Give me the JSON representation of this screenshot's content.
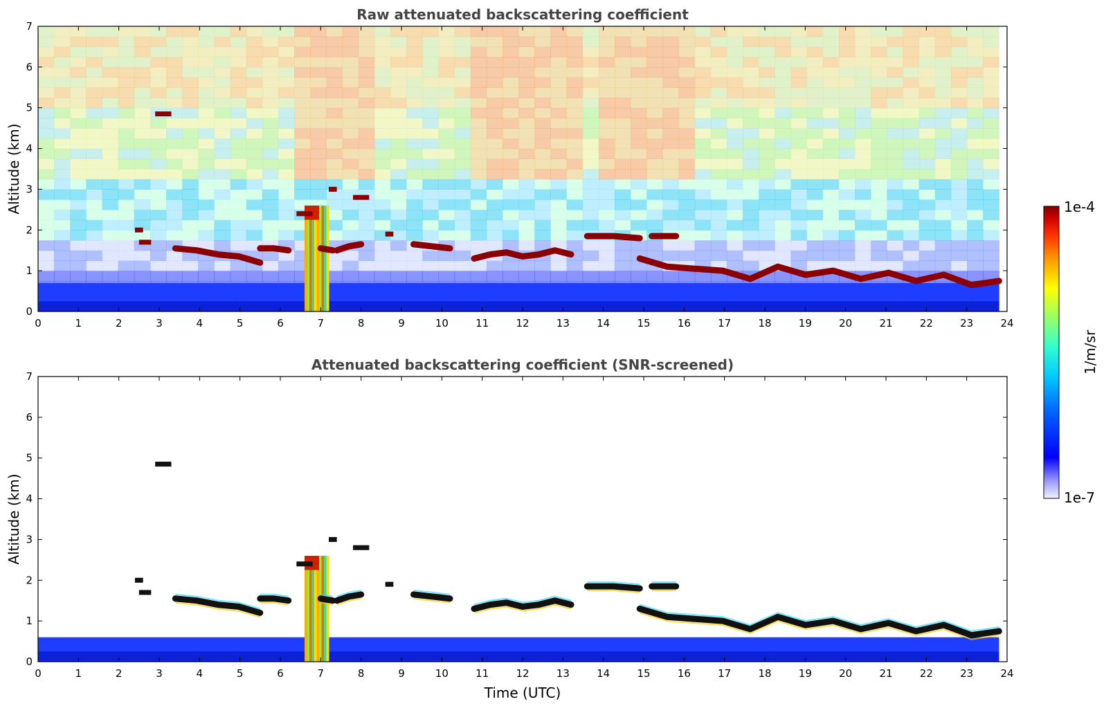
{
  "chart_data": [
    {
      "type": "heatmap",
      "title": "Raw attenuated backscattering coefficient",
      "xlabel": "",
      "ylabel": "Altitude (km)",
      "xlim": [
        0,
        24
      ],
      "ylim": [
        0,
        7
      ],
      "x_ticks": [
        "0",
        "1",
        "2",
        "3",
        "4",
        "5",
        "6",
        "7",
        "8",
        "9",
        "10",
        "11",
        "12",
        "13",
        "14",
        "15",
        "16",
        "17",
        "18",
        "19",
        "20",
        "21",
        "22",
        "23",
        "24"
      ],
      "y_ticks": [
        "0",
        "1",
        "2",
        "3",
        "4",
        "5",
        "6",
        "7"
      ],
      "data_end_time": 23.8,
      "noise": true,
      "boundary_layer_top_km": 0.7,
      "cloud_layers": [
        {
          "t": [
            3.4,
            5.5
          ],
          "alt": [
            1.55,
            1.5,
            1.4,
            1.35,
            1.2
          ]
        },
        {
          "t": [
            5.5,
            6.2
          ],
          "alt": [
            1.55,
            1.55,
            1.5
          ]
        },
        {
          "t": [
            7.0,
            7.3
          ],
          "alt": [
            1.55,
            1.5
          ]
        },
        {
          "t": [
            7.4,
            8.0
          ],
          "alt": [
            1.5,
            1.6,
            1.65
          ]
        },
        {
          "t": [
            9.3,
            10.2
          ],
          "alt": [
            1.65,
            1.6,
            1.55
          ]
        },
        {
          "t": [
            10.8,
            13.2
          ],
          "alt": [
            1.3,
            1.4,
            1.45,
            1.35,
            1.4,
            1.5,
            1.4
          ]
        },
        {
          "t": [
            13.6,
            14.9
          ],
          "alt": [
            1.85,
            1.85,
            1.8
          ]
        },
        {
          "t": [
            15.2,
            15.8
          ],
          "alt": [
            1.85,
            1.85
          ]
        },
        {
          "t": [
            14.9,
            23.8
          ],
          "alt": [
            1.3,
            1.1,
            1.05,
            1.0,
            0.8,
            1.1,
            0.9,
            1.0,
            0.8,
            0.95,
            0.75,
            0.9,
            0.65,
            0.75
          ]
        }
      ],
      "small_patches": [
        {
          "t": [
            2.9,
            3.3
          ],
          "alt": 4.85
        },
        {
          "t": [
            2.4,
            2.6
          ],
          "alt": 2.0
        },
        {
          "t": [
            2.5,
            2.8
          ],
          "alt": 1.7
        },
        {
          "t": [
            8.6,
            8.8
          ],
          "alt": 1.9
        },
        {
          "t": [
            7.8,
            8.2
          ],
          "alt": 2.8
        },
        {
          "t": [
            7.2,
            7.4
          ],
          "alt": 3.0
        },
        {
          "t": [
            6.4,
            6.8
          ],
          "alt": 2.4
        }
      ],
      "rain_shafts": [
        {
          "t": [
            6.6,
            7.2
          ],
          "top_km": 2.6
        }
      ]
    },
    {
      "type": "heatmap",
      "title": "Attenuated backscattering coefficient (SNR-screened)",
      "xlabel": "Time (UTC)",
      "ylabel": "Altitude (km)",
      "xlim": [
        0,
        24
      ],
      "ylim": [
        0,
        7
      ],
      "x_ticks": [
        "0",
        "1",
        "2",
        "3",
        "4",
        "5",
        "6",
        "7",
        "8",
        "9",
        "10",
        "11",
        "12",
        "13",
        "14",
        "15",
        "16",
        "17",
        "18",
        "19",
        "20",
        "21",
        "22",
        "23",
        "24"
      ],
      "y_ticks": [
        "0",
        "1",
        "2",
        "3",
        "4",
        "5",
        "6",
        "7"
      ],
      "data_end_time": 23.8,
      "noise": false,
      "boundary_layer_top_km": 0.6,
      "cloud_layers": [
        {
          "t": [
            3.4,
            5.5
          ],
          "alt": [
            1.55,
            1.5,
            1.4,
            1.35,
            1.2
          ]
        },
        {
          "t": [
            5.5,
            6.2
          ],
          "alt": [
            1.55,
            1.55,
            1.5
          ]
        },
        {
          "t": [
            7.0,
            7.3
          ],
          "alt": [
            1.55,
            1.5
          ]
        },
        {
          "t": [
            7.4,
            8.0
          ],
          "alt": [
            1.5,
            1.6,
            1.65
          ]
        },
        {
          "t": [
            9.3,
            10.2
          ],
          "alt": [
            1.65,
            1.6,
            1.55
          ]
        },
        {
          "t": [
            10.8,
            13.2
          ],
          "alt": [
            1.3,
            1.4,
            1.45,
            1.35,
            1.4,
            1.5,
            1.4
          ]
        },
        {
          "t": [
            13.6,
            14.9
          ],
          "alt": [
            1.85,
            1.85,
            1.8
          ]
        },
        {
          "t": [
            15.2,
            15.8
          ],
          "alt": [
            1.85,
            1.85
          ]
        },
        {
          "t": [
            14.9,
            23.8
          ],
          "alt": [
            1.3,
            1.1,
            1.05,
            1.0,
            0.8,
            1.1,
            0.9,
            1.0,
            0.8,
            0.95,
            0.75,
            0.9,
            0.65,
            0.75
          ]
        }
      ],
      "small_patches": [
        {
          "t": [
            2.9,
            3.3
          ],
          "alt": 4.85
        },
        {
          "t": [
            2.4,
            2.6
          ],
          "alt": 2.0
        },
        {
          "t": [
            2.5,
            2.8
          ],
          "alt": 1.7
        },
        {
          "t": [
            8.6,
            8.8
          ],
          "alt": 1.9
        },
        {
          "t": [
            7.8,
            8.2
          ],
          "alt": 2.8
        },
        {
          "t": [
            7.2,
            7.4
          ],
          "alt": 3.0
        },
        {
          "t": [
            6.4,
            6.8
          ],
          "alt": 2.4
        }
      ],
      "rain_shafts": [
        {
          "t": [
            6.6,
            7.2
          ],
          "top_km": 2.6
        }
      ]
    }
  ],
  "colorbar": {
    "max_label": "1e-4",
    "min_label": "1e-7",
    "unit_label": "1/m/sr",
    "colormap": [
      "#f2f2ff",
      "#9999ff",
      "#0000ff",
      "#0066ff",
      "#00ccff",
      "#33ffcc",
      "#99ff66",
      "#ffff00",
      "#ff9900",
      "#ff3300",
      "#cc0000",
      "#800000"
    ]
  }
}
